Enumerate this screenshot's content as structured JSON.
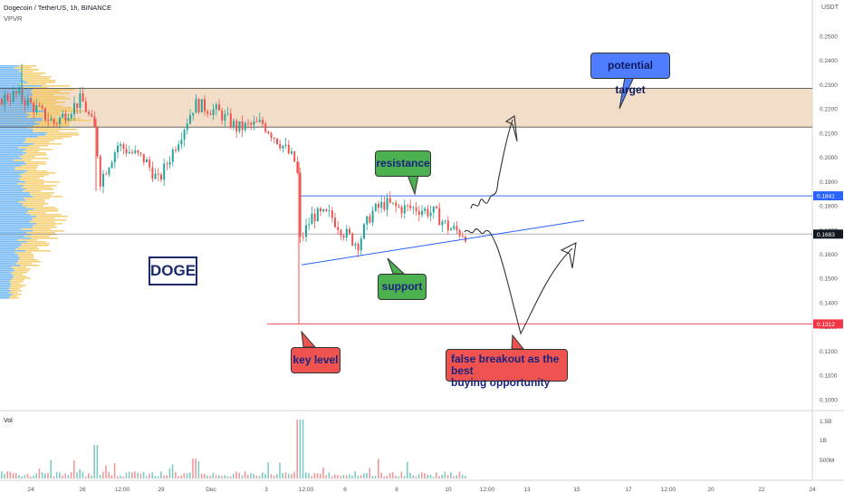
{
  "header": {
    "title": "Dogecoin / TetherUS, 1h, BINANCE",
    "indicator": "VPVR",
    "currency": "USDT",
    "volume_label": "Vol"
  },
  "chart_data": {
    "type": "candlestick",
    "symbol": "Dogecoin / TetherUS",
    "timeframe": "1h",
    "exchange": "BINANCE",
    "ylim": [
      0.095,
      0.26
    ],
    "y_ticks": [
      "0.2500",
      "0.2400",
      "0.2300",
      "0.2200",
      "0.2100",
      "0.2000",
      "0.1900",
      "0.1800",
      "0.1700",
      "0.1600",
      "0.1500",
      "0.1400",
      "0.1300",
      "0.1200",
      "0.1100",
      "0.1000"
    ],
    "x_ticks": [
      "24",
      "26",
      "12:00",
      "29",
      "Dec",
      "3",
      "12:00",
      "6",
      "8",
      "10",
      "12:00",
      "13",
      "15",
      "17",
      "12:00",
      "20",
      "22",
      "24"
    ],
    "volume_ticks": [
      "1.5B",
      "1B",
      "500M"
    ],
    "price_labels": [
      {
        "value": 0.1841,
        "text": "0.1841",
        "color": "#2962ff"
      },
      {
        "value": 0.1683,
        "text": "0.1683",
        "color": "#131722"
      },
      {
        "value": 0.1312,
        "text": "0.1312",
        "color": "#f23645"
      }
    ],
    "zones": [
      {
        "name": "supply zone",
        "from": 0.2125,
        "to": 0.2285,
        "color": "#ecd2b6"
      }
    ],
    "levels": [
      {
        "value": 0.2285,
        "color": "#555555"
      },
      {
        "value": 0.2125,
        "color": "#555555"
      },
      {
        "value": 0.1841,
        "color": "#2962ff"
      },
      {
        "value": 0.1683,
        "color": "#787b86"
      },
      {
        "value": 0.1312,
        "color": "#f23645"
      }
    ],
    "annotations": {
      "doge": "DOGE",
      "resistance": "resistance",
      "support": "support",
      "key_level": "key level",
      "potential_target": "potential target",
      "false_breakout": [
        "false breakout as the best",
        "buying opportunity"
      ]
    },
    "colors": {
      "up": "#26a69a",
      "down": "#ef5350",
      "vpvr_up": "#4aa3f0",
      "vpvr_down": "#f2c14e"
    }
  }
}
